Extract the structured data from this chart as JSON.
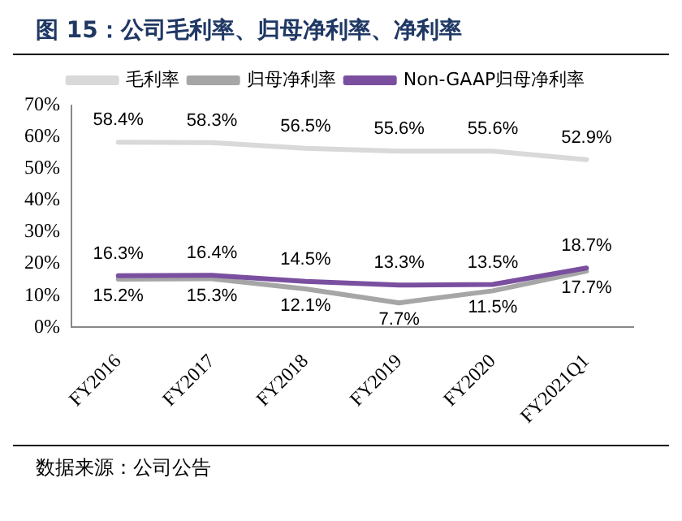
{
  "chart_data": {
    "type": "line",
    "title": "图 15：公司毛利率、归母净利率、净利率",
    "annotations": [
      "数据来源：公司公告"
    ],
    "categories": [
      "FY2016",
      "FY2017",
      "FY2018",
      "FY2019",
      "FY2020",
      "FY2021Q1"
    ],
    "series": [
      {
        "name": "毛利率",
        "color": "#d9d9d9",
        "values": [
          58.4,
          58.3,
          56.5,
          55.6,
          55.6,
          52.9
        ],
        "value_labels": [
          "58.4%",
          "58.3%",
          "56.5%",
          "55.6%",
          "55.6%",
          "52.9%"
        ]
      },
      {
        "name": "归母净利率",
        "color": "#a6a6a6",
        "values": [
          15.2,
          15.3,
          12.1,
          7.7,
          11.5,
          17.7
        ],
        "value_labels": [
          "15.2%",
          "15.3%",
          "12.1%",
          "7.7%",
          "11.5%",
          "17.7%"
        ]
      },
      {
        "name": "Non-GAAP归母净利率",
        "color": "#7b4fa0",
        "values": [
          16.3,
          16.4,
          14.5,
          13.3,
          13.5,
          18.7
        ],
        "value_labels": [
          "16.3%",
          "16.4%",
          "14.5%",
          "13.3%",
          "13.5%",
          "18.7%"
        ]
      }
    ],
    "ylim": [
      0,
      70
    ],
    "yticks": [
      {
        "value": 0,
        "label": "0%"
      },
      {
        "value": 10,
        "label": "10%"
      },
      {
        "value": 20,
        "label": "20%"
      },
      {
        "value": 30,
        "label": "30%"
      },
      {
        "value": 40,
        "label": "40%"
      },
      {
        "value": 50,
        "label": "50%"
      },
      {
        "value": 60,
        "label": "60%"
      },
      {
        "value": 70,
        "label": "70%"
      }
    ],
    "grid": false,
    "legend": "top",
    "marker": "none",
    "line_style": "solid"
  }
}
